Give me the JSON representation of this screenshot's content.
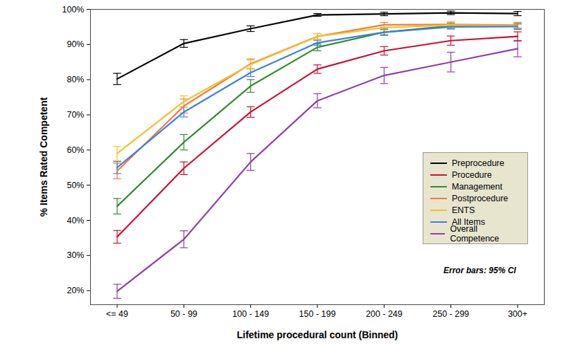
{
  "chart_data": {
    "type": "line",
    "x_label": "Lifetime procedural count (Binned)",
    "y_label": "% Items Rated Competent",
    "categories": [
      "<= 49",
      "50 - 99",
      "100 - 149",
      "150 - 199",
      "200 - 249",
      "250 - 299",
      "300+"
    ],
    "ylim": [
      16,
      100
    ],
    "yticks": [
      {
        "value": 20,
        "label": "20%"
      },
      {
        "value": 30,
        "label": "30%"
      },
      {
        "value": 40,
        "label": "40%"
      },
      {
        "value": 50,
        "label": "50%"
      },
      {
        "value": 60,
        "label": "60%"
      },
      {
        "value": 70,
        "label": "70%"
      },
      {
        "value": 80,
        "label": "80%"
      },
      {
        "value": 90,
        "label": "90%"
      },
      {
        "value": 100,
        "label": "100%"
      }
    ],
    "legend": "right",
    "annotation": "Error bars: 95% CI",
    "series": [
      {
        "name": "Preprocedure",
        "color": "#000000",
        "values": [
          80.2,
          90.3,
          94.5,
          98.4,
          98.7,
          99.0,
          98.8
        ],
        "error": [
          1.6,
          1.1,
          0.8,
          0.4,
          0.5,
          0.5,
          0.6
        ]
      },
      {
        "name": "Procedure",
        "color": "#c8102e",
        "values": [
          35.3,
          54.8,
          70.8,
          83.0,
          88.2,
          91.1,
          92.3
        ],
        "error": [
          1.8,
          1.8,
          1.5,
          1.2,
          1.2,
          1.3,
          1.3
        ]
      },
      {
        "name": "Management",
        "color": "#2e8b2e",
        "values": [
          44.0,
          62.2,
          78.2,
          89.2,
          93.5,
          95.3,
          95.2
        ],
        "error": [
          2.2,
          2.2,
          1.8,
          1.0,
          0.9,
          0.8,
          0.9
        ]
      },
      {
        "name": "Postprocedure",
        "color": "#f4793b",
        "values": [
          54.0,
          72.5,
          84.5,
          92.3,
          95.6,
          95.7,
          95.5
        ],
        "error": [
          2.2,
          2.0,
          1.4,
          0.8,
          0.7,
          0.7,
          0.8
        ]
      },
      {
        "name": "ENTS",
        "color": "#f2c12e",
        "values": [
          59.0,
          73.8,
          84.3,
          92.3,
          94.8,
          95.5,
          95.3
        ],
        "error": [
          2.0,
          1.6,
          1.3,
          0.8,
          0.7,
          0.7,
          0.7
        ]
      },
      {
        "name": "All Items",
        "color": "#3a7fe0",
        "values": [
          55.0,
          70.8,
          82.0,
          90.5,
          93.5,
          95.0,
          95.1
        ],
        "error": [
          1.7,
          1.4,
          1.1,
          0.7,
          0.7,
          0.6,
          0.7
        ]
      },
      {
        "name": "Overall Competence",
        "color": "#8e3fa8",
        "values": [
          19.8,
          34.6,
          56.6,
          74.0,
          81.2,
          85.0,
          88.8
        ],
        "error": [
          2.0,
          2.4,
          2.4,
          2.0,
          2.3,
          2.8,
          2.3
        ]
      }
    ]
  }
}
